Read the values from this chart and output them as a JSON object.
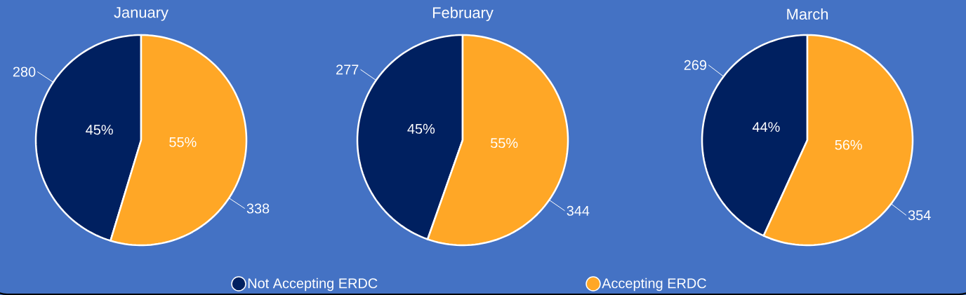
{
  "chart_data": [
    {
      "type": "pie",
      "title": "January",
      "categories": [
        "Not Accepting ERDC",
        "Accepting ERDC"
      ],
      "values": [
        280,
        338
      ],
      "colors": [
        "#002060",
        "#ffa726"
      ],
      "data_labels": true,
      "annotations": [
        {
          "text": "45%",
          "x": "Not Accepting ERDC"
        },
        {
          "text": "55%",
          "x": "Accepting ERDC"
        }
      ],
      "legend": "bottom"
    },
    {
      "type": "pie",
      "title": "February",
      "values": [
        277,
        344
      ],
      "colors": [
        "#002060",
        "#ffa726"
      ],
      "data_labels": true,
      "annotations": [
        "45%",
        "55%"
      ]
    },
    {
      "type": "pie",
      "title": "March",
      "values": [
        269,
        354
      ],
      "colors": [
        "#002060",
        "#ffa726"
      ],
      "data_labels": true,
      "annotations": [
        "44%",
        "56%"
      ]
    }
  ]
}
